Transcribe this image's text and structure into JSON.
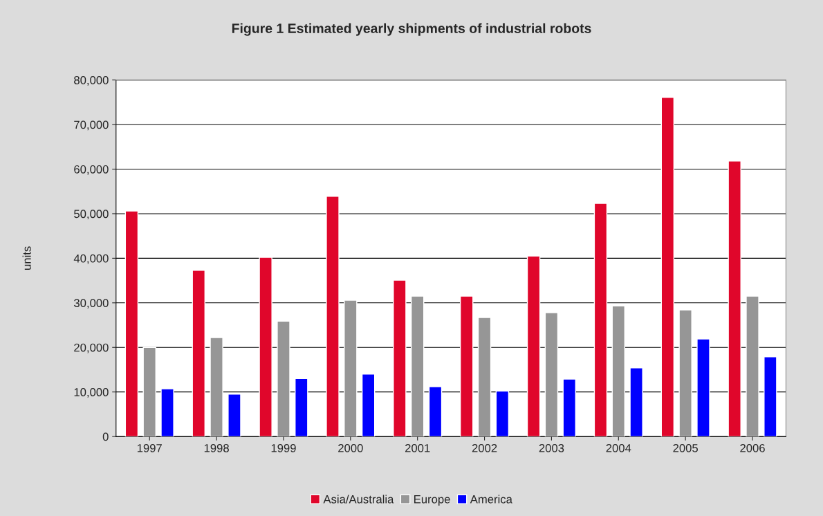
{
  "chart_data": {
    "type": "bar",
    "title": "Figure 1 Estimated yearly shipments of industrial robots",
    "ylabel": "units",
    "categories": [
      "1997",
      "1998",
      "1999",
      "2000",
      "2001",
      "2002",
      "2003",
      "2004",
      "2005",
      "2006"
    ],
    "series": [
      {
        "name": "Asia/Australia",
        "color": "#e0062b",
        "values": [
          50600,
          37300,
          40200,
          53900,
          35100,
          31500,
          40500,
          52300,
          76100,
          61800
        ]
      },
      {
        "name": "Europe",
        "color": "#969696",
        "values": [
          20000,
          22200,
          25900,
          30600,
          31500,
          26700,
          27800,
          29300,
          28400,
          31500
        ]
      },
      {
        "name": "America",
        "color": "#0000ff",
        "values": [
          10700,
          9500,
          13000,
          14000,
          11200,
          10200,
          12900,
          15400,
          21900,
          17900
        ]
      }
    ],
    "ylim": [
      0,
      80000
    ],
    "yticks": [
      0,
      {
        "value": 10000,
        "label": "10,000"
      },
      {
        "value": 20000,
        "label": "20,000"
      },
      {
        "value": 30000,
        "label": "30,000"
      },
      {
        "value": 40000,
        "label": "40,000"
      },
      {
        "value": 50000,
        "label": "50,000"
      },
      {
        "value": 60000,
        "label": "60,000"
      },
      {
        "value": 70000,
        "label": "70,000"
      },
      {
        "value": 80000,
        "label": "80,000"
      }
    ],
    "grid": "y",
    "legend": "bottom"
  }
}
